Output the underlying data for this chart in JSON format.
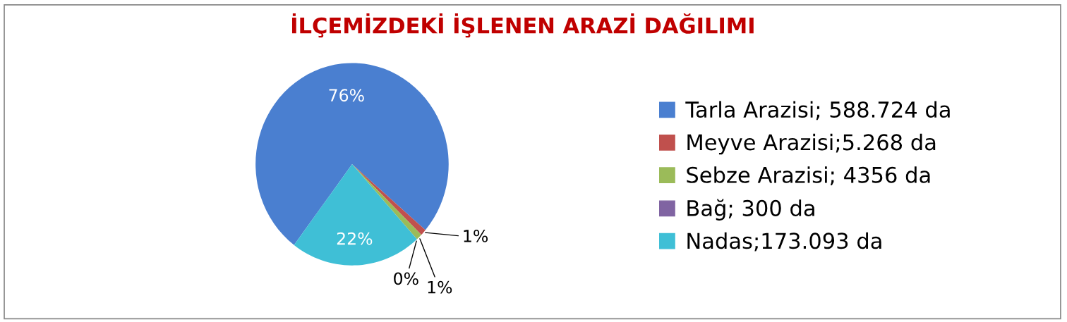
{
  "chart_data": {
    "type": "pie",
    "title": "İLÇEMİZDEKİ İŞLENEN ARAZİ DAĞILIMI",
    "categories": [
      "Tarla Arazisi; 588.724 da",
      "Meyve Arazisi;5.268 da",
      "Sebze Arazisi; 4356 da",
      "Bağ; 300 da",
      "Nadas;173.093 da"
    ],
    "values": [
      76,
      1,
      1,
      0,
      22
    ],
    "value_labels": [
      "76%",
      "1%",
      "1%",
      "0%",
      "22%"
    ],
    "colors": [
      "#4a7fd0",
      "#c0504d",
      "#9bbb59",
      "#8064a2",
      "#3fbfd6"
    ],
    "legend": "right"
  }
}
